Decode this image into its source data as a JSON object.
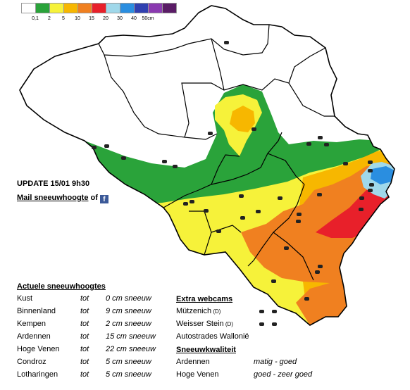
{
  "legend": {
    "colors": [
      "#ffffff",
      "#2aa33a",
      "#f6f23a",
      "#f7b700",
      "#f08020",
      "#e8202a",
      "#a0d8ea",
      "#2a8ee0",
      "#3040b0",
      "#8a3ab0",
      "#5a1c66"
    ],
    "labels": [
      "0,1",
      "2",
      "5",
      "10",
      "15",
      "20",
      "30",
      "40",
      "50cm"
    ]
  },
  "map_colors": {
    "white": "#ffffff",
    "green": "#2aa33a",
    "yellow": "#f6f23a",
    "gold": "#f7b700",
    "orange": "#f08020",
    "red": "#e8202a",
    "lightblue": "#a0d8ea",
    "blue": "#2a8ee0",
    "border": "#000000"
  },
  "update_text": "UPDATE 15/01 9h30",
  "mail": {
    "link": "Mail sneeuwhoogte",
    "suffix": " of",
    "icon": "facebook-icon"
  },
  "depths": {
    "title": "Actuele sneeuwhoogtes",
    "rows": [
      {
        "region": "Kust",
        "tot": "tot",
        "value": "0 cm sneeuw"
      },
      {
        "region": "Binnenland",
        "tot": "tot",
        "value": "9 cm sneeuw"
      },
      {
        "region": "Kempen",
        "tot": "tot",
        "value": "2 cm sneeuw"
      },
      {
        "region": "Ardennen",
        "tot": "tot",
        "value": "15 cm sneeuw"
      },
      {
        "region": "Hoge Venen",
        "tot": "tot",
        "value": "22 cm sneeuw"
      },
      {
        "region": "Condroz",
        "tot": "tot",
        "value": "5 cm sneeuw"
      },
      {
        "region": "Lotharingen",
        "tot": "tot",
        "value": "5 cm sneeuw"
      }
    ]
  },
  "webcams": {
    "title": "Extra webcams",
    "rows": [
      {
        "name": "Mützenich",
        "tag": "(D)",
        "icon": "camera-icon"
      },
      {
        "name": "Weisser Stein",
        "tag": "(D)",
        "icon": "camera-icon"
      },
      {
        "name": "Autostrades Wallonië",
        "tag": "",
        "icon": "camera-icon"
      }
    ]
  },
  "quality": {
    "title": "Sneeuwkwaliteit",
    "rows": [
      {
        "region": "Ardennen",
        "value": "matig - goed"
      },
      {
        "region": "Hoge Venen",
        "value": "goed - zeer goed"
      }
    ]
  }
}
